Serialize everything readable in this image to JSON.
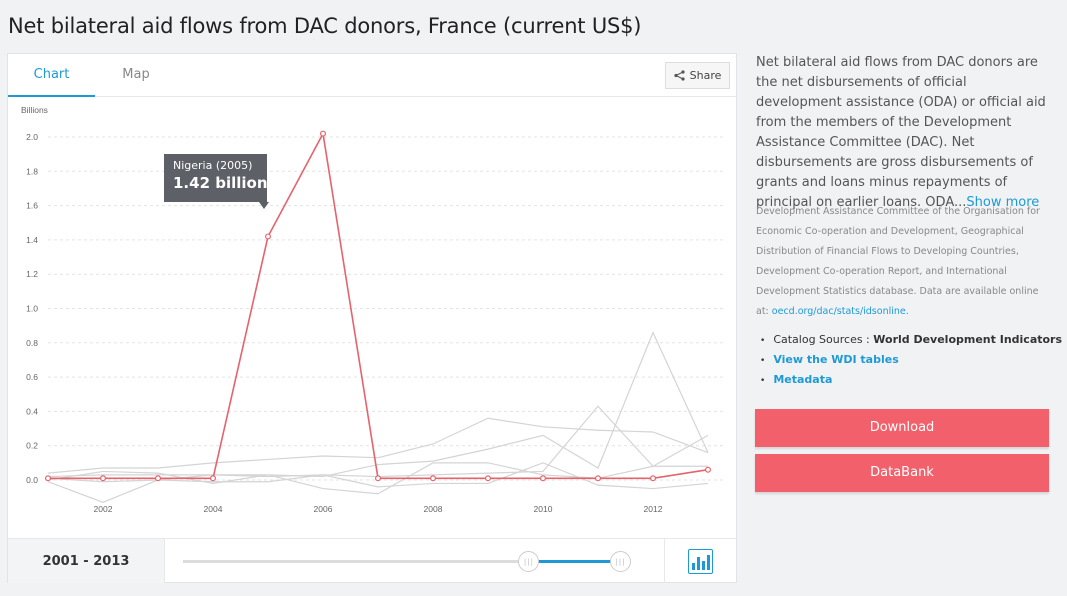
{
  "page": {
    "title": "Net bilateral aid flows from DAC donors, France (current US$)"
  },
  "tabs": {
    "chart": "Chart",
    "map": "Map"
  },
  "share": {
    "label": "Share"
  },
  "chart_data": {
    "type": "line",
    "ylabel": "Billions",
    "x": [
      2001,
      2002,
      2003,
      2004,
      2005,
      2006,
      2007,
      2008,
      2009,
      2010,
      2011,
      2012,
      2013
    ],
    "xticks": [
      "2002",
      "2004",
      "2006",
      "2008",
      "2010",
      "2012"
    ],
    "yticks": [
      "0.0",
      "0.2",
      "0.4",
      "0.6",
      "0.8",
      "1.0",
      "1.2",
      "1.4",
      "1.6",
      "1.8",
      "2.0"
    ],
    "ylim": [
      -0.15,
      2.1
    ],
    "grid": true,
    "highlight_color": "#e5636c",
    "background_color": "#d4d4d4",
    "highlight_values": [
      0.01,
      0.01,
      0.01,
      0.01,
      1.42,
      2.02,
      0.01,
      0.01,
      0.01,
      0.01,
      0.01,
      0.01,
      0.06
    ],
    "background_series": [
      [
        0.04,
        0.07,
        0.07,
        0.1,
        0.12,
        0.14,
        0.13,
        0.21,
        0.36,
        0.31,
        0.29,
        0.28,
        0.16
      ],
      [
        -0.01,
        -0.13,
        0.0,
        0.03,
        0.03,
        0.02,
        0.09,
        0.11,
        0.18,
        0.26,
        0.07,
        0.86,
        0.16
      ],
      [
        0.02,
        0.03,
        0.03,
        0.03,
        0.02,
        0.03,
        0.02,
        0.03,
        0.04,
        0.05,
        0.43,
        0.08,
        0.26
      ],
      [
        0.0,
        0.05,
        0.04,
        -0.02,
        0.03,
        -0.05,
        -0.08,
        0.1,
        0.1,
        0.03,
        0.01,
        0.08,
        0.08
      ],
      [
        0.01,
        -0.01,
        0.0,
        -0.01,
        -0.01,
        0.03,
        -0.04,
        -0.02,
        -0.02,
        0.1,
        -0.03,
        -0.05,
        -0.02
      ]
    ],
    "tooltip": {
      "label": "Nigeria (2005)",
      "value": "1.42 billion"
    }
  },
  "footer": {
    "range": "2001 - 2013",
    "slider_start_fraction": 0.778,
    "slider_end_fraction": 1.0
  },
  "description": {
    "text": "Net bilateral aid flows from DAC donors are the net disbursements of official development assistance (ODA) or official aid from the members of the Development Assistance Committee (DAC). Net disbursements are gross disbursements of grants and loans minus repayments of principal on earlier loans. ODA...",
    "show_more": "Show more"
  },
  "source": {
    "text": "Development Assistance Committee of the Organisation for Economic Co-operation and Development, Geographical Distribution of Financial Flows to Developing Countries, Development Co-operation Report, and International Development Statistics database. Data are available online at: ",
    "link": "oecd.org/dac/stats/idsonline."
  },
  "links": {
    "catalog_label": "Catalog Sources : ",
    "catalog_value": "World Development Indicators",
    "wdi_tables": "View the WDI tables",
    "metadata": "Metadata"
  },
  "buttons": {
    "download": "Download",
    "databank": "DataBank"
  }
}
